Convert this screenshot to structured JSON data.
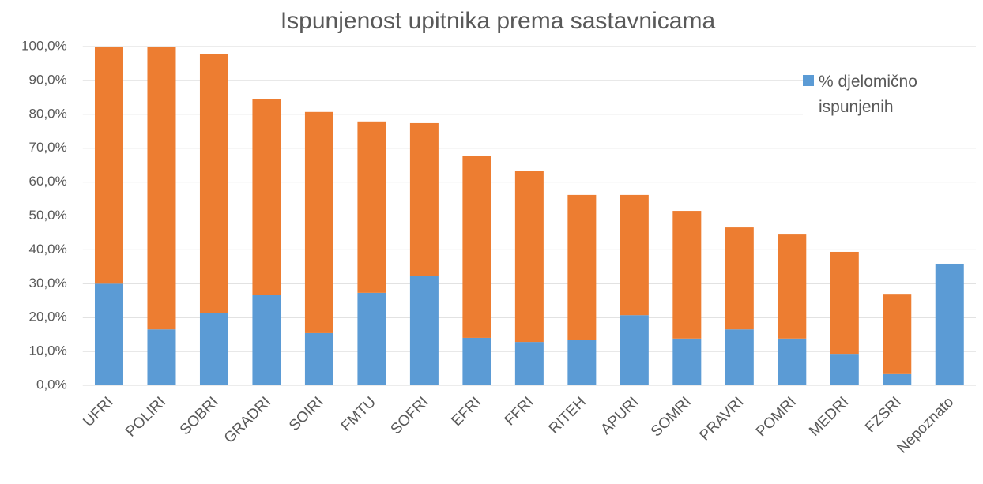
{
  "chart_data": {
    "type": "stacked_bar",
    "title": "Ispunjenost upitnika prema sastavnicama",
    "categories": [
      "UFRI",
      "POLIRI",
      "SOBRI",
      "GRADRI",
      "SOIRI",
      "FMTU",
      "SOFRI",
      "EFRI",
      "FFRI",
      "RITEH",
      "APURI",
      "SOMRI",
      "PRAVRI",
      "POMRI",
      "MEDRI",
      "FZSRI",
      "Nepoznato"
    ],
    "series": [
      {
        "name": "% djelomično ispunjenih",
        "color": "#5b9bd5",
        "values": [
          30.0,
          16.5,
          21.4,
          26.6,
          15.4,
          27.3,
          32.4,
          14.0,
          12.8,
          13.5,
          20.7,
          13.8,
          16.5,
          13.8,
          9.3,
          3.3,
          35.9
        ]
      },
      {
        "color": "#ed7d31",
        "values": [
          70.0,
          83.5,
          76.5,
          57.8,
          65.3,
          50.6,
          45.0,
          53.8,
          50.4,
          42.7,
          35.5,
          37.7,
          30.1,
          30.7,
          30.1,
          23.7,
          0
        ]
      }
    ],
    "ylim": [
      0,
      100
    ],
    "yticks": [
      {
        "value": 0,
        "label": "0,0%"
      },
      {
        "value": 10,
        "label": "10,0%"
      },
      {
        "value": 20,
        "label": "20,0%"
      },
      {
        "value": 30,
        "label": "30,0%"
      },
      {
        "value": 40,
        "label": "40,0%"
      },
      {
        "value": 50,
        "label": "50,0%"
      },
      {
        "value": 60,
        "label": "60,0%"
      },
      {
        "value": 70,
        "label": "70,0%"
      },
      {
        "value": 80,
        "label": "80,0%"
      },
      {
        "value": 90,
        "label": "90,0%"
      },
      {
        "value": 100,
        "label": "100,0%"
      }
    ],
    "grid": true,
    "legend": "top-right"
  }
}
